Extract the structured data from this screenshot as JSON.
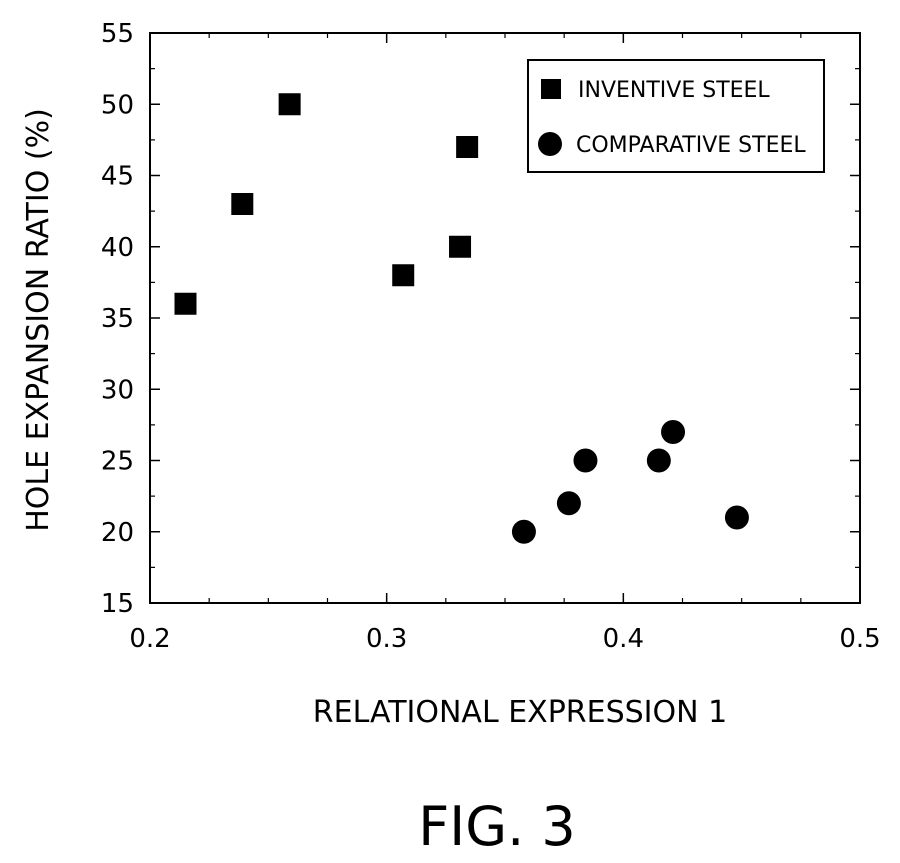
{
  "figure": {
    "caption": "FIG. 3"
  },
  "chart_data": {
    "type": "scatter",
    "xlabel": "RELATIONAL EXPRESSION 1",
    "ylabel": "HOLE EXPANSION RATIO (%)",
    "xlim": [
      0.2,
      0.5
    ],
    "ylim": [
      15,
      55
    ],
    "x_ticks": [
      "0.2",
      "0.3",
      "0.4",
      "0.5"
    ],
    "y_ticks": [
      "15",
      "20",
      "25",
      "30",
      "35",
      "40",
      "45",
      "50",
      "55"
    ],
    "grid": false,
    "legend_position": "top-right",
    "series": [
      {
        "name": "INVENTIVE STEEL",
        "marker": "square",
        "color": "#000000",
        "points": [
          {
            "x": 0.215,
            "y": 36
          },
          {
            "x": 0.239,
            "y": 43
          },
          {
            "x": 0.259,
            "y": 50
          },
          {
            "x": 0.307,
            "y": 38
          },
          {
            "x": 0.331,
            "y": 40
          },
          {
            "x": 0.334,
            "y": 47
          }
        ]
      },
      {
        "name": "COMPARATIVE STEEL",
        "marker": "circle",
        "color": "#000000",
        "points": [
          {
            "x": 0.358,
            "y": 20
          },
          {
            "x": 0.377,
            "y": 22
          },
          {
            "x": 0.384,
            "y": 25
          },
          {
            "x": 0.415,
            "y": 25
          },
          {
            "x": 0.421,
            "y": 27
          },
          {
            "x": 0.448,
            "y": 21
          }
        ]
      }
    ]
  }
}
